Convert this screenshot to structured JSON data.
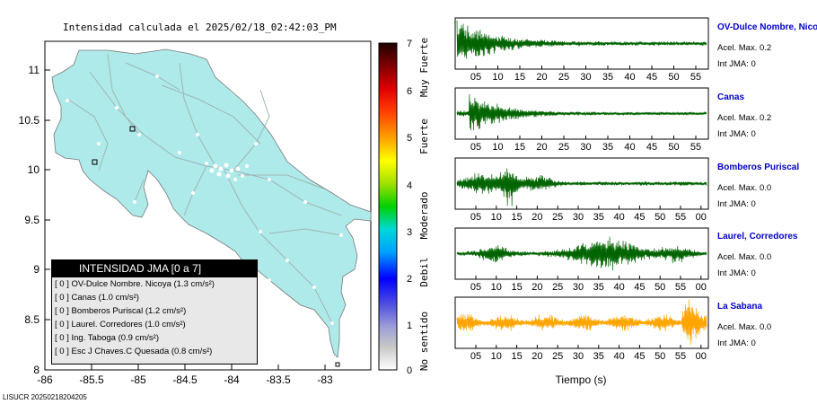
{
  "map": {
    "title": "Intensidad calculada el 2025/02/18_02:42:03_PM",
    "x_ticks": [
      "-86",
      "-85.5",
      "-85",
      "-84.5",
      "-84",
      "-83.5",
      "-83"
    ],
    "y_ticks": [
      "11",
      "10.5",
      "10",
      "9.5",
      "9",
      "8.5",
      "8"
    ],
    "land_color": "#aeeaea",
    "footer": "LISUCR 20250218204205"
  },
  "colorbar": {
    "ticks": [
      "7",
      "6",
      "5",
      "4",
      "3",
      "2",
      "1",
      "0"
    ],
    "labels": [
      "Muy Fuerte",
      "Fuerte",
      "Moderado",
      "Debil",
      "No sentido"
    ]
  },
  "legend": {
    "title": "INTENSIDAD JMA [0 a 7]",
    "items": [
      "[ 0 ]  OV-Dulce Nombre. Nicoya (1.3 cm/s²)",
      "[ 0 ]  Canas (1.0 cm/s²)",
      "[ 0 ]  Bomberos Puriscal (1.2 cm/s²)",
      "[ 0 ]  Laurel. Corredores (1.0 cm/s²)",
      "[ 0 ]  Ing. Taboga (0.9 cm/s²)",
      "[ 0 ]  Esc J Chaves.C Quesada (0.8 cm/s²)"
    ]
  },
  "stations": [
    {
      "name": "OV-Dulce Nombre, Nicoya",
      "acel": "Acel. Max. 0.2",
      "jma": "Int JMA: 0",
      "color": "#006400",
      "ticks": [
        "05",
        "10",
        "15",
        "20",
        "25",
        "30",
        "35",
        "40",
        "45",
        "50",
        "55"
      ]
    },
    {
      "name": "Canas",
      "acel": "Acel. Max. 0.2",
      "jma": "Int JMA: 0",
      "color": "#006400",
      "ticks": [
        "05",
        "10",
        "15",
        "20",
        "25",
        "30",
        "35",
        "40",
        "45",
        "50",
        "55"
      ]
    },
    {
      "name": "Bomberos Puriscal",
      "acel": "Acel. Max. 0.0",
      "jma": "Int JMA: 0",
      "color": "#006400",
      "ticks": [
        "05",
        "10",
        "15",
        "20",
        "25",
        "30",
        "35",
        "40",
        "45",
        "50",
        "55",
        "00"
      ]
    },
    {
      "name": "Laurel, Corredores",
      "acel": "Acel. Max. 0.0",
      "jma": "Int JMA: 0",
      "color": "#006400",
      "ticks": [
        "05",
        "10",
        "15",
        "20",
        "25",
        "30",
        "35",
        "40",
        "45",
        "50",
        "55",
        "00"
      ]
    },
    {
      "name": "La Sabana",
      "acel": "Acel. Max. 0.0",
      "jma": "Int JMA: 0",
      "color": "#ffa500",
      "ticks": [
        "05",
        "10",
        "15",
        "20",
        "25",
        "30",
        "35",
        "40",
        "45",
        "50",
        "55",
        "00"
      ]
    }
  ],
  "time_axis_label": "Tiempo (s)"
}
